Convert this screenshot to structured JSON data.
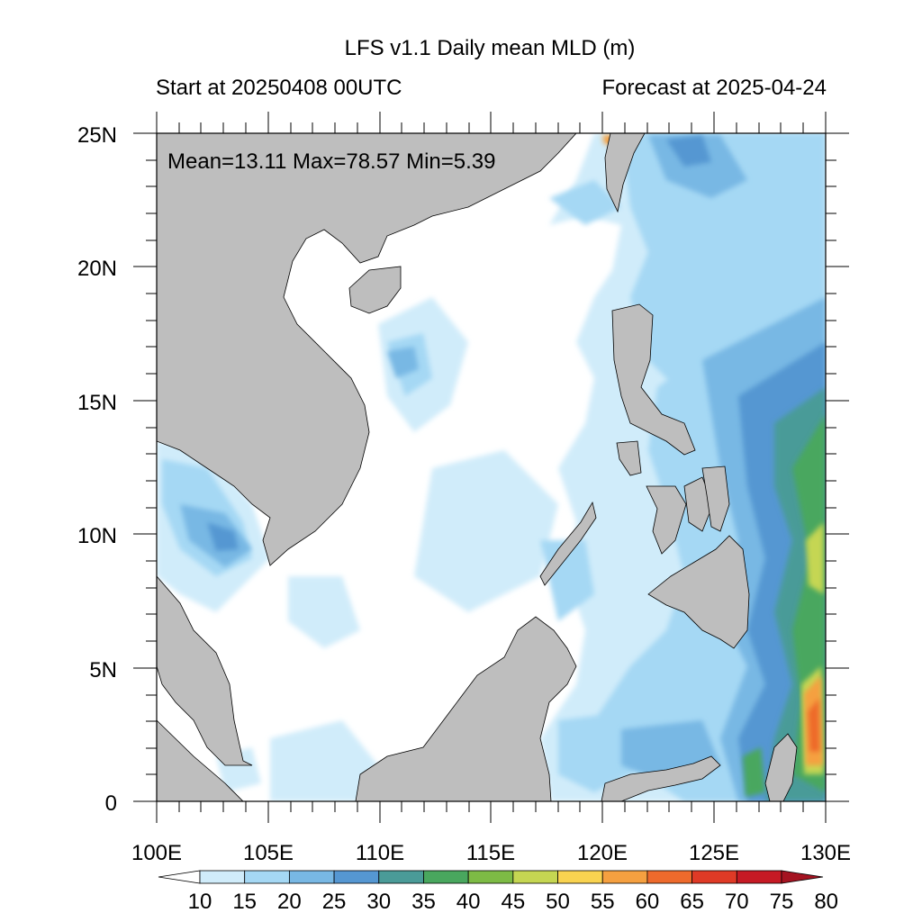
{
  "header": {
    "title": "LFS v1.1 Daily mean MLD (m)",
    "start_label": "Start at 20250408 00UTC",
    "forecast_label": "Forecast at 2025-04-24"
  },
  "stats": {
    "text": "Mean=13.11  Max=78.57  Min=5.39"
  },
  "map": {
    "lat_labels": [
      "25N",
      "20N",
      "15N",
      "10N",
      "5N",
      "0"
    ],
    "lon_labels": [
      "100E",
      "105E",
      "110E",
      "115E",
      "120E",
      "125E",
      "130E"
    ],
    "land_color": "#bebebe",
    "ocean_base_color": "#ffffff"
  },
  "colorbar": {
    "levels": [
      "10",
      "15",
      "20",
      "25",
      "30",
      "35",
      "40",
      "45",
      "50",
      "55",
      "60",
      "65",
      "70",
      "75",
      "80"
    ],
    "colors": [
      "#ffffff",
      "#d0ecfa",
      "#a5d8f4",
      "#78b8e4",
      "#5597d2",
      "#4a9b98",
      "#49a75e",
      "#7dbb45",
      "#c5d652",
      "#f9d350",
      "#f5a040",
      "#ee6a2c",
      "#df3a26",
      "#c61a24",
      "#a51321"
    ]
  }
}
